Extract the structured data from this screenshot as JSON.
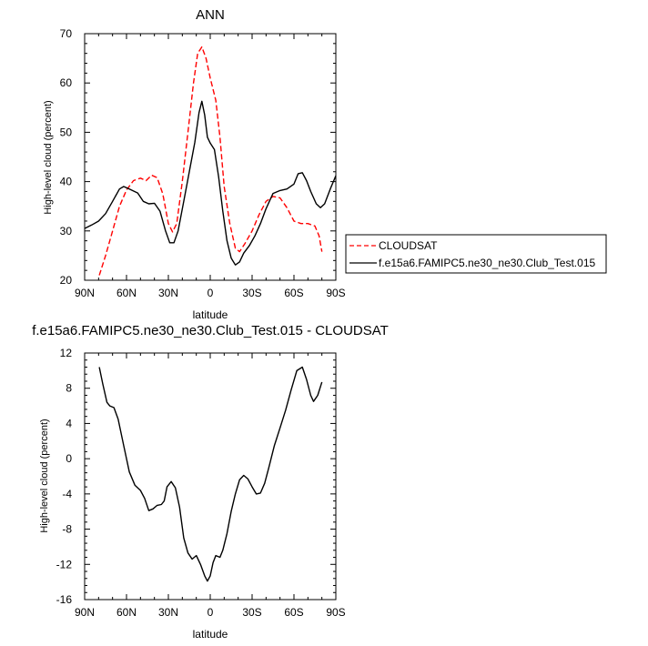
{
  "chart_data": [
    {
      "type": "line",
      "title": "ANN",
      "xlabel": "latitude",
      "ylabel": "High-level cloud (percent)",
      "xlim": [
        -90,
        90
      ],
      "ylim": [
        20,
        70
      ],
      "x_ticks": [
        -90,
        -60,
        -30,
        0,
        30,
        60,
        90
      ],
      "x_tick_labels": [
        "90N",
        "60N",
        "30N",
        "0",
        "30S",
        "60S",
        "90S"
      ],
      "y_ticks": [
        20,
        30,
        40,
        50,
        60,
        70
      ],
      "y_tick_labels": [
        "20",
        "30",
        "40",
        "50",
        "60",
        "70"
      ],
      "legend_position": "right",
      "series": [
        {
          "name": "CLOUDSAT",
          "color": "#ff0000",
          "dash": "dashed",
          "points": [
            [
              -79.5,
              21.0
            ],
            [
              -75,
              25.0
            ],
            [
              -70,
              30.0
            ],
            [
              -65,
              35.0
            ],
            [
              -60,
              38.3
            ],
            [
              -55,
              40.2
            ],
            [
              -50,
              40.7
            ],
            [
              -46,
              40.2
            ],
            [
              -42,
              41.3
            ],
            [
              -38,
              40.8
            ],
            [
              -34,
              37.5
            ],
            [
              -30,
              31.5
            ],
            [
              -27,
              29.8
            ],
            [
              -24,
              31.5
            ],
            [
              -20,
              40.0
            ],
            [
              -16,
              50.0
            ],
            [
              -12,
              60.0
            ],
            [
              -9,
              66.0
            ],
            [
              -6,
              67.3
            ],
            [
              -3,
              65.0
            ],
            [
              0,
              61.0
            ],
            [
              4,
              56.5
            ],
            [
              7,
              49.0
            ],
            [
              10,
              39.0
            ],
            [
              14,
              31.5
            ],
            [
              18,
              26.5
            ],
            [
              21,
              25.8
            ],
            [
              25,
              27.5
            ],
            [
              30,
              30.0
            ],
            [
              35,
              33.3
            ],
            [
              40,
              36.0
            ],
            [
              45,
              37.0
            ],
            [
              50,
              36.7
            ],
            [
              55,
              34.7
            ],
            [
              60,
              32.0
            ],
            [
              65,
              31.5
            ],
            [
              70,
              31.5
            ],
            [
              75,
              31.0
            ],
            [
              78,
              29.0
            ],
            [
              80,
              25.8
            ]
          ]
        },
        {
          "name": "f.e15a6.FAMIPC5.ne30_ne30.Club_Test.015",
          "color": "#000000",
          "dash": "solid",
          "points": [
            [
              -90,
              30.5
            ],
            [
              -85,
              31.2
            ],
            [
              -80,
              32.0
            ],
            [
              -75,
              33.5
            ],
            [
              -70,
              36.0
            ],
            [
              -65,
              38.5
            ],
            [
              -62,
              39.0
            ],
            [
              -58,
              38.5
            ],
            [
              -52,
              37.7
            ],
            [
              -48,
              36.0
            ],
            [
              -44,
              35.5
            ],
            [
              -40,
              35.6
            ],
            [
              -36,
              34.0
            ],
            [
              -32,
              30.0
            ],
            [
              -29,
              27.6
            ],
            [
              -26,
              27.6
            ],
            [
              -23,
              30.0
            ],
            [
              -19,
              36.0
            ],
            [
              -15,
              42.0
            ],
            [
              -11,
              48.0
            ],
            [
              -8,
              54.0
            ],
            [
              -6,
              56.3
            ],
            [
              -4,
              53.5
            ],
            [
              -2,
              49.0
            ],
            [
              0,
              47.8
            ],
            [
              3,
              46.5
            ],
            [
              6,
              41.0
            ],
            [
              9,
              34.0
            ],
            [
              12,
              28.0
            ],
            [
              15,
              24.5
            ],
            [
              18,
              23.1
            ],
            [
              21,
              23.7
            ],
            [
              24,
              25.5
            ],
            [
              28,
              27.0
            ],
            [
              32,
              29.0
            ],
            [
              36,
              31.5
            ],
            [
              40,
              34.5
            ],
            [
              45,
              37.6
            ],
            [
              50,
              38.2
            ],
            [
              55,
              38.5
            ],
            [
              60,
              39.5
            ],
            [
              63,
              41.6
            ],
            [
              66,
              41.8
            ],
            [
              69,
              40.2
            ],
            [
              72,
              38.0
            ],
            [
              76,
              35.5
            ],
            [
              79,
              34.7
            ],
            [
              82,
              35.5
            ],
            [
              86,
              38.5
            ],
            [
              90,
              41.2
            ]
          ]
        }
      ]
    },
    {
      "type": "line",
      "title": "f.e15a6.FAMIPC5.ne30_ne30.Club_Test.015 - CLOUDSAT",
      "xlabel": "latitude",
      "ylabel": "High-level cloud (percent)",
      "xlim": [
        -90,
        90
      ],
      "ylim": [
        -16,
        12
      ],
      "x_ticks": [
        -90,
        -60,
        -30,
        0,
        30,
        60,
        90
      ],
      "x_tick_labels": [
        "90N",
        "60N",
        "30N",
        "0",
        "30S",
        "60S",
        "90S"
      ],
      "y_ticks": [
        -16,
        -12,
        -8,
        -4,
        0,
        4,
        8,
        12
      ],
      "y_tick_labels": [
        "-16",
        "-12",
        "-8",
        "-4",
        "0",
        "4",
        "8",
        "12"
      ],
      "series": [
        {
          "color": "#000000",
          "dash": "solid",
          "points": [
            [
              -79.5,
              10.4
            ],
            [
              -77,
              8.5
            ],
            [
              -74,
              6.4
            ],
            [
              -72,
              6.0
            ],
            [
              -69,
              5.8
            ],
            [
              -66,
              4.5
            ],
            [
              -62,
              1.5
            ],
            [
              -58,
              -1.5
            ],
            [
              -54,
              -3.0
            ],
            [
              -50,
              -3.6
            ],
            [
              -47,
              -4.5
            ],
            [
              -44,
              -5.9
            ],
            [
              -41,
              -5.7
            ],
            [
              -38,
              -5.3
            ],
            [
              -35,
              -5.2
            ],
            [
              -33,
              -4.8
            ],
            [
              -31,
              -3.2
            ],
            [
              -28,
              -2.6
            ],
            [
              -25,
              -3.3
            ],
            [
              -22,
              -5.5
            ],
            [
              -19,
              -9.0
            ],
            [
              -16,
              -10.7
            ],
            [
              -13,
              -11.4
            ],
            [
              -10,
              -11.0
            ],
            [
              -7,
              -12.0
            ],
            [
              -4,
              -13.3
            ],
            [
              -2,
              -13.9
            ],
            [
              0,
              -13.3
            ],
            [
              2,
              -11.8
            ],
            [
              4,
              -11.0
            ],
            [
              7,
              -11.2
            ],
            [
              9,
              -10.4
            ],
            [
              12,
              -8.5
            ],
            [
              15,
              -6.0
            ],
            [
              18,
              -4.0
            ],
            [
              21,
              -2.4
            ],
            [
              24,
              -1.9
            ],
            [
              27,
              -2.3
            ],
            [
              30,
              -3.2
            ],
            [
              33,
              -4.0
            ],
            [
              36,
              -3.9
            ],
            [
              39,
              -2.8
            ],
            [
              42,
              -1.0
            ],
            [
              46,
              1.5
            ],
            [
              50,
              3.5
            ],
            [
              54,
              5.5
            ],
            [
              58,
              7.8
            ],
            [
              62,
              10.0
            ],
            [
              66,
              10.4
            ],
            [
              69,
              9.0
            ],
            [
              72,
              7.2
            ],
            [
              74,
              6.5
            ],
            [
              77,
              7.2
            ],
            [
              80,
              8.7
            ]
          ]
        }
      ]
    }
  ]
}
